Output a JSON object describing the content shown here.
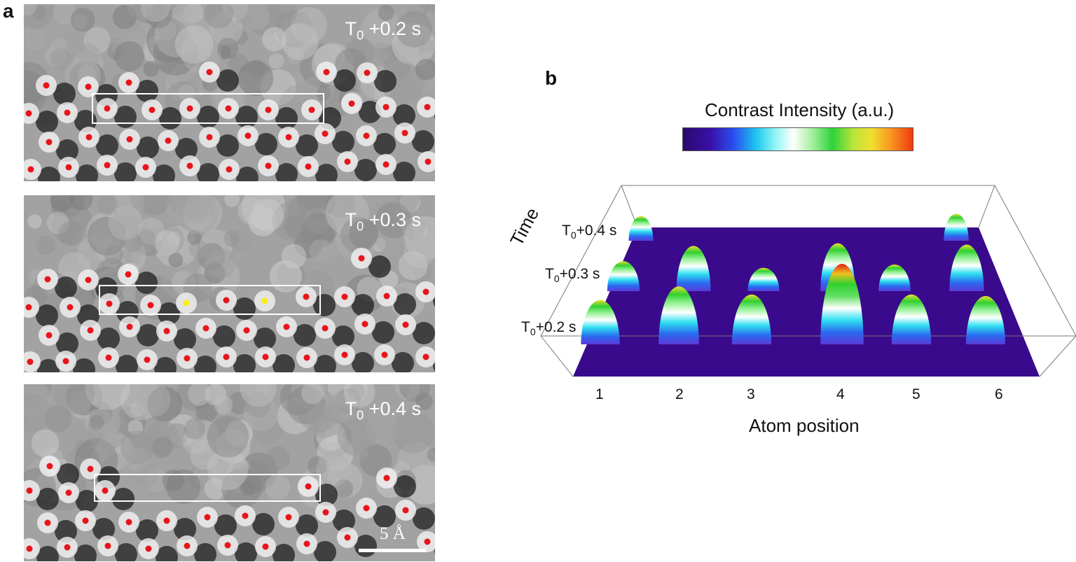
{
  "panel_a": {
    "label": "a",
    "frames": [
      {
        "time_sub": "0",
        "time_pre": "T",
        "time_post": " +0.2 s"
      },
      {
        "time_sub": "0",
        "time_pre": "T",
        "time_post": " +0.3 s"
      },
      {
        "time_sub": "0",
        "time_pre": "T",
        "time_post": " +0.4 s"
      }
    ],
    "scale_bar": "5 Å"
  },
  "panel_b": {
    "label": "b",
    "colorbar_title": "Contrast Intensity (a.u.)",
    "time_axis_title": "Time",
    "time_labels": [
      {
        "pre": "T",
        "sub": "0",
        "post": "+0.4 s"
      },
      {
        "pre": "T",
        "sub": "0",
        "post": "+0.3 s"
      },
      {
        "pre": "T",
        "sub": "0",
        "post": "+0.2 s"
      }
    ],
    "x_axis_title": "Atom position",
    "x_ticks": [
      "1",
      "2",
      "3",
      "4",
      "5",
      "6"
    ],
    "surface_color": "#3a0a8c",
    "chart_data": {
      "type": "heatmap",
      "x_categories": [
        "1",
        "2",
        "3",
        "4",
        "5",
        "6"
      ],
      "y_categories": [
        "T0+0.2 s",
        "T0+0.3 s",
        "T0+0.4 s"
      ],
      "presence": [
        [
          1,
          1,
          1,
          1,
          1,
          1
        ],
        [
          1,
          1,
          1,
          1,
          1,
          1
        ],
        [
          1,
          0,
          0,
          0,
          0,
          1
        ]
      ],
      "relative_intensity": [
        [
          0.55,
          0.72,
          0.62,
          1.0,
          0.62,
          0.6
        ],
        [
          0.45,
          0.68,
          0.35,
          0.72,
          0.4,
          0.7
        ],
        [
          0.5,
          0,
          0,
          0,
          0,
          0.55
        ]
      ]
    }
  }
}
